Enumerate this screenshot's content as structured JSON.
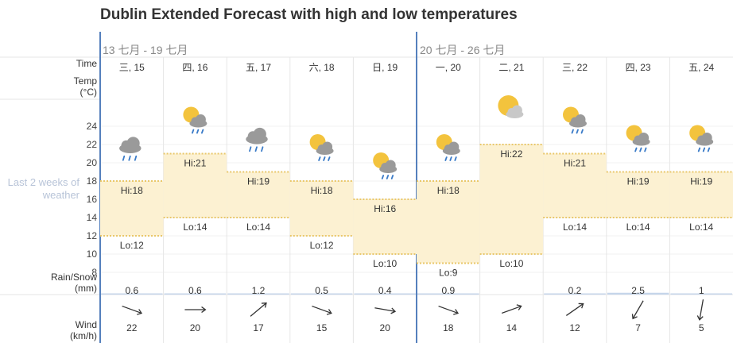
{
  "title": "Dublin Extended Forecast with high and low temperatures",
  "weeks": [
    "13 七月 - 19 七月",
    "20 七月 - 26 七月"
  ],
  "labels": {
    "time": "Time",
    "temp_line1": "Temp",
    "temp_line2": "(°C)",
    "rain_line1": "Rain/Snow",
    "rain_line2": "(mm)",
    "wind_line1": "Wind",
    "wind_line2": "(km/h)",
    "side_line1": "Last 2 weeks of",
    "side_line2": "weather"
  },
  "colors": {
    "band_fill": "#fcf1d2",
    "band_line": "#e9c76a",
    "week_divider": "#5580bd",
    "grid": "#e6e6e6",
    "rain_bar": "#c5d5ea",
    "sun": "#f3c33d",
    "cloud": "#9a9a9a",
    "rain_drop": "#3a7bc8"
  },
  "chart_data": {
    "type": "area",
    "ylim": [
      8,
      24
    ],
    "yticks": [
      8,
      10,
      12,
      14,
      16,
      18,
      20,
      22,
      24
    ],
    "days": [
      "三, 15",
      "四, 16",
      "五, 17",
      "六, 18",
      "日, 19",
      "一, 20",
      "二, 21",
      "三, 22",
      "四, 23",
      "五, 24"
    ],
    "high": [
      18,
      21,
      19,
      18,
      16,
      18,
      22,
      21,
      19,
      19
    ],
    "low": [
      12,
      14,
      14,
      12,
      10,
      9,
      10,
      14,
      14,
      14
    ],
    "high_prefix": "Hi:",
    "low_prefix": "Lo:",
    "icons": [
      "cloud-rain-icon",
      "sun-cloud-rain-icon",
      "cloud-rain-icon",
      "sun-cloud-rain-icon",
      "sun-cloud-rain-icon",
      "sun-cloud-rain-icon",
      "sun-cloud-icon",
      "sun-cloud-rain-icon",
      "sun-cloud-rain-icon",
      "sun-cloud-rain-icon"
    ],
    "rain_labels": [
      "0.6",
      "0.6",
      "1.2",
      "0.5",
      "0.4",
      "0.9",
      "",
      "0.2",
      "2.5",
      "1"
    ],
    "rain_mm": [
      0.6,
      0.6,
      1.2,
      0.5,
      0.4,
      0.9,
      0,
      0.2,
      2.5,
      1
    ],
    "wind_speed": [
      "22",
      "20",
      "17",
      "15",
      "20",
      "18",
      "14",
      "12",
      "7",
      "5"
    ],
    "wind_icons": [
      "wind-arrow-right-down",
      "wind-arrow-right",
      "wind-arrow-up-right",
      "wind-arrow-right-down",
      "wind-arrow-right",
      "wind-arrow-right-down",
      "wind-arrow-right-up",
      "wind-arrow-up-right",
      "wind-arrow-down-left",
      "wind-arrow-down"
    ],
    "wind_dir_deg": [
      20,
      0,
      -40,
      20,
      10,
      20,
      -20,
      -35,
      120,
      100
    ]
  }
}
